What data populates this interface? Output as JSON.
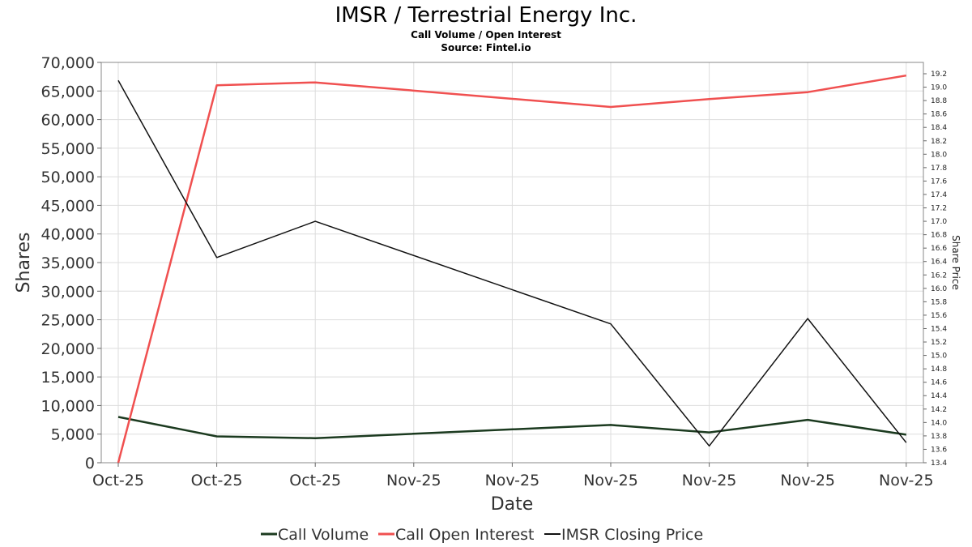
{
  "chart_data": {
    "type": "line",
    "title": "IMSR / Terrestrial Energy Inc.",
    "subtitle": "Call Volume / Open Interest",
    "source": "Source: Fintel.io",
    "xlabel": "Date",
    "ylabel": "Shares",
    "y2label": "Share Price",
    "categories": [
      "Oct-25",
      "Oct-25",
      "Oct-25",
      "Nov-25",
      "Nov-25",
      "Nov-25",
      "Nov-25",
      "Nov-25",
      "Nov-25"
    ],
    "ylim": [
      0,
      70000
    ],
    "yticks": [
      0,
      5000,
      10000,
      15000,
      20000,
      25000,
      30000,
      35000,
      40000,
      45000,
      50000,
      55000,
      60000,
      65000,
      70000
    ],
    "ytick_labels": [
      "0",
      "5,000",
      "10,000",
      "15,000",
      "20,000",
      "25,000",
      "30,000",
      "35,000",
      "40,000",
      "45,000",
      "50,000",
      "55,000",
      "60,000",
      "65,000",
      "70,000"
    ],
    "y2lim": [
      13.4,
      19.3
    ],
    "y2ticks": [
      13.4,
      13.6,
      13.8,
      14.0,
      14.2,
      14.4,
      14.6,
      14.8,
      15.0,
      15.2,
      15.4,
      15.6,
      15.8,
      16.0,
      16.2,
      16.4,
      16.6,
      16.8,
      17.0,
      17.2,
      17.4,
      17.6,
      17.8,
      18.0,
      18.2,
      18.4,
      18.6,
      18.8,
      19.0,
      19.2
    ],
    "y2tick_labels": [
      "13.4",
      "13.6",
      "13.8",
      "14.0",
      "14.2",
      "14.4",
      "14.6",
      "14.8",
      "15.0",
      "15.2",
      "15.4",
      "15.6",
      "15.8",
      "16.0",
      "16.2",
      "16.4",
      "16.6",
      "16.8",
      "17.0",
      "17.2",
      "17.4",
      "17.6",
      "17.8",
      "18.0",
      "18.2",
      "18.4",
      "18.6",
      "18.8",
      "19.0",
      "19.2"
    ],
    "series": [
      {
        "name": "Call Volume",
        "axis": "left",
        "color": "#1b3a1f",
        "x": [
          0,
          1,
          2,
          5,
          6,
          7,
          8
        ],
        "values": [
          8000,
          4600,
          4300,
          6600,
          5300,
          7500,
          4900
        ]
      },
      {
        "name": "Call Open Interest",
        "axis": "left",
        "color": "#f05050",
        "x": [
          0,
          1,
          2,
          5,
          6,
          7,
          8
        ],
        "values": [
          0,
          66000,
          66500,
          62200,
          63600,
          64800,
          67700
        ]
      },
      {
        "name": "IMSR Closing Price",
        "axis": "right",
        "color": "#111111",
        "x": [
          0,
          1,
          2,
          5,
          6,
          7,
          8
        ],
        "values": [
          19.1,
          16.46,
          17.0,
          15.47,
          13.65,
          15.55,
          13.7
        ]
      }
    ],
    "grid": true,
    "legend": "bottom-center"
  }
}
